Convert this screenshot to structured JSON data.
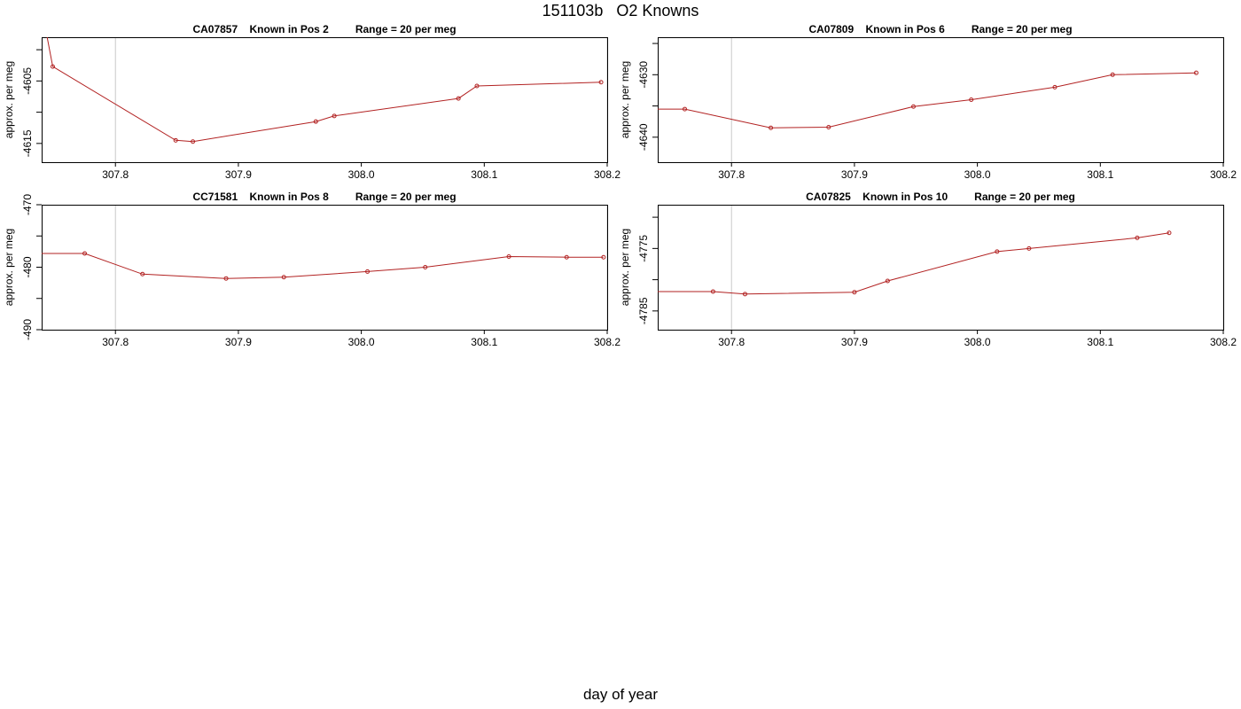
{
  "title": "151103b   O2 Knowns",
  "xlabel": "day of year",
  "colors": {
    "line": "#b22222",
    "grid": "#c8c8c8",
    "axis": "#000000"
  },
  "chart_data": [
    {
      "type": "line",
      "title": "CA07857    Known in Pos 2         Range = 20 per meg",
      "ylabel": "approx. per meg",
      "xlim": [
        307.74,
        308.2
      ],
      "ylim": [
        -4618,
        -4598
      ],
      "xticks": [
        307.8,
        307.9,
        308.0,
        308.1,
        308.2
      ],
      "xtick_labels": [
        "307.8",
        "307.9",
        "308.0",
        "308.1",
        "308.2"
      ],
      "yticks": [
        -4615,
        -4605
      ],
      "ytick_labels": [
        "-4615",
        "-4605"
      ],
      "x": [
        307.749,
        307.849,
        307.863,
        307.963,
        307.978,
        308.079,
        308.094,
        308.195
      ],
      "y": [
        -4602.7,
        -4614.5,
        -4614.7,
        -4611.5,
        -4610.6,
        -4607.8,
        -4605.8,
        -4605.2
      ],
      "line_start": {
        "x": 307.7445,
        "y": -4598
      },
      "grid_x": [
        307.8,
        308.2
      ]
    },
    {
      "type": "line",
      "title": "CA07809    Known in Pos 6         Range = 20 per meg",
      "ylabel": "approx. per meg",
      "xlim": [
        307.74,
        308.2
      ],
      "ylim": [
        -4644,
        -4624
      ],
      "xticks": [
        307.8,
        307.9,
        308.0,
        308.1,
        308.2
      ],
      "xtick_labels": [
        "307.8",
        "307.9",
        "308.0",
        "308.1",
        "308.2"
      ],
      "yticks": [
        -4640,
        -4630
      ],
      "ytick_labels": [
        "-4640",
        "-4630"
      ],
      "x": [
        307.762,
        307.832,
        307.879,
        307.948,
        307.995,
        308.063,
        308.11,
        308.178
      ],
      "y": [
        -4635.5,
        -4638.5,
        -4638.4,
        -4635.1,
        -4634.0,
        -4632.0,
        -4630.0,
        -4629.7
      ],
      "line_start": {
        "x": 307.74,
        "y": -4635.5
      },
      "grid_x": [
        307.8,
        308.2
      ]
    },
    {
      "type": "line",
      "title": "CC71581    Known in Pos 8         Range = 20 per meg",
      "ylabel": "approx. per meg",
      "xlim": [
        307.74,
        308.2
      ],
      "ylim": [
        -490,
        -470
      ],
      "xticks": [
        307.8,
        307.9,
        308.0,
        308.1,
        308.2
      ],
      "xtick_labels": [
        "307.8",
        "307.9",
        "308.0",
        "308.1",
        "308.2"
      ],
      "yticks": [
        -490,
        -480,
        -470
      ],
      "ytick_labels": [
        "-490",
        "-480",
        "-470"
      ],
      "x": [
        307.775,
        307.822,
        307.89,
        307.937,
        308.005,
        308.052,
        308.12,
        308.167,
        308.197
      ],
      "y": [
        -477.8,
        -481.1,
        -481.8,
        -481.6,
        -480.7,
        -480.0,
        -478.3,
        -478.4,
        -478.4
      ],
      "line_start": {
        "x": 307.74,
        "y": -477.8
      },
      "grid_x": [
        307.8,
        308.2
      ]
    },
    {
      "type": "line",
      "title": "CA07825    Known in Pos 10         Range = 20 per meg",
      "ylabel": "approx. per meg",
      "xlim": [
        307.74,
        308.2
      ],
      "ylim": [
        -4788,
        -4768
      ],
      "xticks": [
        307.8,
        307.9,
        308.0,
        308.1,
        308.2
      ],
      "xtick_labels": [
        "307.8",
        "307.9",
        "308.0",
        "308.1",
        "308.2"
      ],
      "yticks": [
        -4785,
        -4775
      ],
      "ytick_labels": [
        "-4785",
        "-4775"
      ],
      "x": [
        307.785,
        307.811,
        307.9,
        307.927,
        308.016,
        308.042,
        308.13,
        308.156
      ],
      "y": [
        -4781.9,
        -4782.3,
        -4782.0,
        -4780.2,
        -4775.5,
        -4775.0,
        -4773.3,
        -4772.5
      ],
      "line_start": {
        "x": 307.74,
        "y": -4781.9
      },
      "grid_x": [
        307.8,
        308.2
      ]
    }
  ]
}
